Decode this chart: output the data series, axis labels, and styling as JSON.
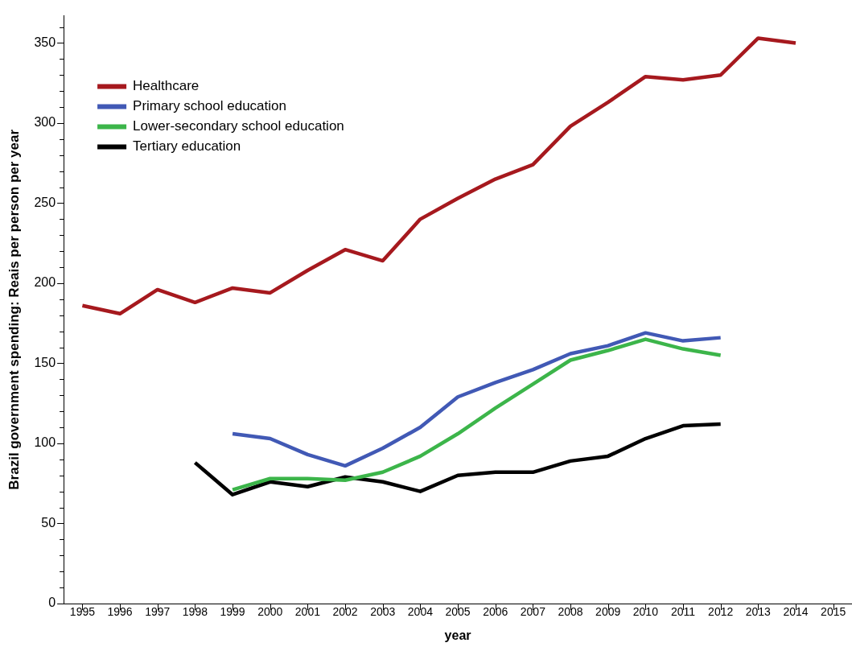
{
  "chart_data": {
    "type": "line",
    "xlabel": "year",
    "ylabel": "Brazil government spending: Reais per person per year",
    "xlim": [
      1994.5,
      2015.5
    ],
    "xticks": [
      1995,
      1996,
      1997,
      1998,
      1999,
      2000,
      2001,
      2002,
      2003,
      2004,
      2005,
      2006,
      2007,
      2008,
      2009,
      2010,
      2011,
      2012,
      2013,
      2014,
      2015
    ],
    "ylim": [
      0,
      367
    ],
    "yticks": [
      0,
      {
        "value": 10,
        "label": null
      },
      {
        "value": 20,
        "label": null
      },
      {
        "value": 30,
        "label": null
      },
      {
        "value": 40,
        "label": null
      },
      50,
      {
        "value": 60,
        "label": null
      },
      {
        "value": 70,
        "label": null
      },
      {
        "value": 80,
        "label": null
      },
      {
        "value": 90,
        "label": null
      },
      100,
      {
        "value": 110,
        "label": null
      },
      {
        "value": 120,
        "label": null
      },
      {
        "value": 130,
        "label": null
      },
      {
        "value": 140,
        "label": null
      },
      150,
      {
        "value": 160,
        "label": null
      },
      {
        "value": 170,
        "label": null
      },
      {
        "value": 180,
        "label": null
      },
      {
        "value": 190,
        "label": null
      },
      200,
      {
        "value": 210,
        "label": null
      },
      {
        "value": 220,
        "label": null
      },
      {
        "value": 230,
        "label": null
      },
      {
        "value": 240,
        "label": null
      },
      250,
      {
        "value": 260,
        "label": null
      },
      {
        "value": 270,
        "label": null
      },
      {
        "value": 280,
        "label": null
      },
      {
        "value": 290,
        "label": null
      },
      300,
      {
        "value": 310,
        "label": null
      },
      {
        "value": 320,
        "label": null
      },
      {
        "value": 330,
        "label": null
      },
      {
        "value": 340,
        "label": null
      },
      350,
      {
        "value": 360,
        "label": null
      }
    ],
    "grid": false,
    "legend": "top left",
    "marker": "none",
    "line_style": "solid",
    "series": [
      {
        "name": "Healthcare",
        "color": "#a6191e",
        "x": [
          1995,
          1996,
          1997,
          1998,
          1999,
          2000,
          2001,
          2002,
          2003,
          2004,
          2005,
          2006,
          2007,
          2008,
          2009,
          2010,
          2011,
          2012,
          2013,
          2014
        ],
        "values": [
          186,
          181,
          196,
          188,
          197,
          194,
          208,
          221,
          214,
          240,
          253,
          265,
          274,
          298,
          313,
          329,
          327,
          330,
          353,
          350
        ]
      },
      {
        "name": "Primary school education",
        "color": "#4159b5",
        "x": [
          1999,
          2000,
          2001,
          2002,
          2003,
          2004,
          2005,
          2006,
          2007,
          2008,
          2009,
          2010,
          2011,
          2012
        ],
        "values": [
          106,
          103,
          93,
          86,
          97,
          110,
          129,
          138,
          146,
          156,
          161,
          169,
          164,
          166
        ]
      },
      {
        "name": "Lower-secondary school education",
        "color": "#3cb54a",
        "x": [
          1999,
          2000,
          2001,
          2002,
          2003,
          2004,
          2005,
          2006,
          2007,
          2008,
          2009,
          2010,
          2011,
          2012
        ],
        "values": [
          71,
          78,
          78,
          77,
          82,
          92,
          106,
          122,
          137,
          152,
          158,
          165,
          159,
          155
        ]
      },
      {
        "name": "Tertiary education",
        "color": "#000000",
        "x": [
          1998,
          1999,
          2000,
          2001,
          2002,
          2003,
          2004,
          2005,
          2006,
          2007,
          2008,
          2009,
          2010,
          2011,
          2012
        ],
        "values": [
          88,
          68,
          76,
          73,
          79,
          76,
          70,
          80,
          82,
          82,
          89,
          92,
          103,
          111,
          112
        ]
      }
    ]
  }
}
